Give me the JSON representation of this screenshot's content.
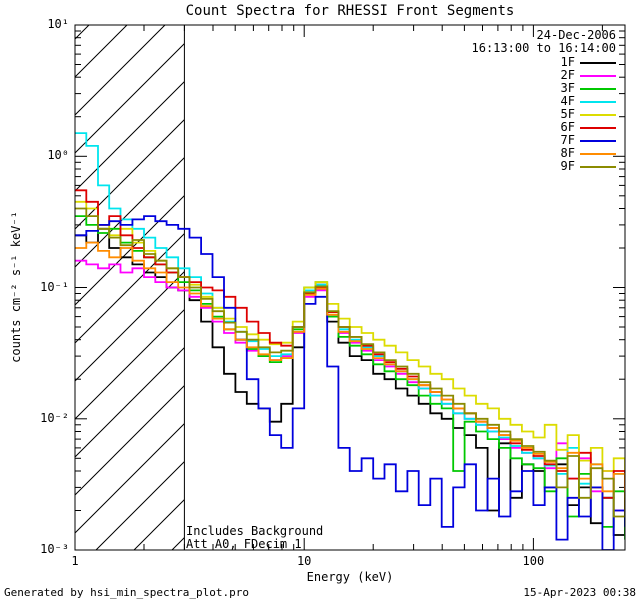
{
  "page": {
    "background": "#ffffff"
  },
  "footer": {
    "left": "Generated by hsi_min_spectra_plot.pro",
    "right": "15-Apr-2023 00:38"
  },
  "chart_data": {
    "type": "line",
    "subtype": "step-log-log-spectra",
    "title": "Count Spectra for RHESSI Front Segments",
    "xlabel": "Energy (keV)",
    "ylabel": "counts cm⁻² s⁻¹ keV⁻¹",
    "date_label": "24-Dec-2006",
    "time_label": "16:13:00 to 16:14:00",
    "annotations": [
      "Includes Background",
      "Att A0, FDecim 1"
    ],
    "x_scale": "log",
    "y_scale": "log",
    "xlim": [
      1,
      251
    ],
    "ylim": [
      0.001,
      10
    ],
    "x_ticks": [
      1,
      10,
      100
    ],
    "x_tick_labels": [
      "1",
      "10",
      "100"
    ],
    "y_ticks": [
      0.001,
      0.01,
      0.1,
      1,
      10
    ],
    "y_tick_labels": [
      "10⁻³",
      "10⁻²",
      "10⁻¹",
      "10⁰",
      "10¹"
    ],
    "grid": false,
    "legend_position": "top-right",
    "hatch_region": {
      "x_start": 1,
      "x_end": 3,
      "style": "diagonal-hatch"
    },
    "energies": [
      1.0,
      1.12,
      1.26,
      1.41,
      1.58,
      1.78,
      2.0,
      2.24,
      2.51,
      2.82,
      3.16,
      3.55,
      3.98,
      4.47,
      5.01,
      5.62,
      6.31,
      7.08,
      7.94,
      8.91,
      10.0,
      11.2,
      12.6,
      14.1,
      15.8,
      17.8,
      20.0,
      22.4,
      25.1,
      28.2,
      31.6,
      35.5,
      39.8,
      44.7,
      50.1,
      56.2,
      63.1,
      70.8,
      79.4,
      89.1,
      100,
      112,
      126,
      141,
      158,
      178,
      200,
      224,
      251
    ],
    "series": [
      {
        "name": "1F",
        "color": "#000000",
        "values": [
          0.25,
          0.22,
          0.28,
          0.2,
          0.17,
          0.15,
          0.13,
          0.12,
          0.1,
          0.095,
          0.08,
          0.055,
          0.035,
          0.022,
          0.016,
          0.013,
          0.012,
          0.0095,
          0.013,
          0.035,
          0.09,
          0.105,
          0.055,
          0.038,
          0.03,
          0.028,
          0.022,
          0.02,
          0.017,
          0.015,
          0.013,
          0.011,
          0.01,
          0.0085,
          0.0075,
          0.006,
          0.002,
          0.0065,
          0.0025,
          0.0045,
          0.004,
          0.003,
          0.0045,
          0.0022,
          0.003,
          0.0016,
          0.0025,
          0.0013,
          0.0018
        ]
      },
      {
        "name": "2F",
        "color": "#ff00ff",
        "values": [
          0.16,
          0.15,
          0.14,
          0.15,
          0.13,
          0.14,
          0.12,
          0.11,
          0.1,
          0.095,
          0.085,
          0.07,
          0.055,
          0.045,
          0.038,
          0.033,
          0.03,
          0.028,
          0.03,
          0.045,
          0.085,
          0.095,
          0.06,
          0.045,
          0.038,
          0.033,
          0.028,
          0.025,
          0.022,
          0.019,
          0.017,
          0.015,
          0.013,
          0.011,
          0.01,
          0.009,
          0.008,
          0.007,
          0.006,
          0.0055,
          0.005,
          0.0042,
          0.0065,
          0.0035,
          0.005,
          0.0028,
          0.004,
          0.002,
          0.0032
        ]
      },
      {
        "name": "3F",
        "color": "#00c800",
        "values": [
          0.35,
          0.3,
          0.26,
          0.28,
          0.22,
          0.19,
          0.17,
          0.15,
          0.13,
          0.11,
          0.095,
          0.075,
          0.06,
          0.048,
          0.04,
          0.034,
          0.03,
          0.027,
          0.029,
          0.048,
          0.1,
          0.11,
          0.06,
          0.042,
          0.036,
          0.031,
          0.026,
          0.023,
          0.02,
          0.018,
          0.015,
          0.013,
          0.012,
          0.004,
          0.0095,
          0.008,
          0.007,
          0.006,
          0.005,
          0.0045,
          0.0042,
          0.0028,
          0.005,
          0.0018,
          0.0038,
          0.003,
          0.0015,
          0.0028,
          0.0012
        ]
      },
      {
        "name": "4F",
        "color": "#00e5ee",
        "values": [
          1.5,
          1.2,
          0.6,
          0.4,
          0.33,
          0.28,
          0.24,
          0.2,
          0.17,
          0.14,
          0.12,
          0.09,
          0.07,
          0.055,
          0.046,
          0.039,
          0.034,
          0.03,
          0.031,
          0.05,
          0.095,
          0.105,
          0.065,
          0.048,
          0.04,
          0.035,
          0.03,
          0.026,
          0.023,
          0.02,
          0.017,
          0.015,
          0.013,
          0.011,
          0.01,
          0.009,
          0.008,
          0.0072,
          0.0062,
          0.0055,
          0.005,
          0.0044,
          0.0038,
          0.006,
          0.0032,
          0.0045,
          0.0025,
          0.0038,
          0.003
        ]
      },
      {
        "name": "5F",
        "color": "#dcdc00",
        "values": [
          0.45,
          0.4,
          0.3,
          0.25,
          0.28,
          0.22,
          0.19,
          0.16,
          0.14,
          0.12,
          0.105,
          0.085,
          0.07,
          0.058,
          0.05,
          0.044,
          0.04,
          0.037,
          0.038,
          0.055,
          0.1,
          0.11,
          0.075,
          0.058,
          0.05,
          0.045,
          0.04,
          0.036,
          0.032,
          0.028,
          0.025,
          0.022,
          0.02,
          0.017,
          0.015,
          0.013,
          0.012,
          0.01,
          0.009,
          0.008,
          0.0072,
          0.009,
          0.0058,
          0.0075,
          0.0048,
          0.006,
          0.004,
          0.005,
          0.0035
        ]
      },
      {
        "name": "6F",
        "color": "#dd0000",
        "values": [
          0.55,
          0.45,
          0.3,
          0.35,
          0.25,
          0.2,
          0.17,
          0.15,
          0.13,
          0.12,
          0.11,
          0.1,
          0.095,
          0.085,
          0.07,
          0.055,
          0.045,
          0.038,
          0.036,
          0.05,
          0.09,
          0.1,
          0.065,
          0.05,
          0.042,
          0.036,
          0.031,
          0.027,
          0.024,
          0.021,
          0.018,
          0.016,
          0.014,
          0.012,
          0.011,
          0.0095,
          0.0085,
          0.0075,
          0.0065,
          0.0058,
          0.0052,
          0.0045,
          0.004,
          0.0035,
          0.0055,
          0.003,
          0.0025,
          0.004,
          0.002
        ]
      },
      {
        "name": "7F",
        "color": "#0000dd",
        "values": [
          0.25,
          0.27,
          0.3,
          0.32,
          0.3,
          0.33,
          0.35,
          0.32,
          0.3,
          0.28,
          0.24,
          0.18,
          0.12,
          0.07,
          0.04,
          0.02,
          0.012,
          0.0075,
          0.006,
          0.012,
          0.075,
          0.085,
          0.025,
          0.006,
          0.004,
          0.005,
          0.0035,
          0.0045,
          0.0028,
          0.004,
          0.0022,
          0.0035,
          0.0015,
          0.003,
          0.0045,
          0.002,
          0.0035,
          0.0018,
          0.0028,
          0.004,
          0.0022,
          0.003,
          0.0012,
          0.0025,
          0.0018,
          0.003,
          0.001,
          0.002,
          0.0015
        ]
      },
      {
        "name": "8F",
        "color": "#ff8c00",
        "values": [
          0.2,
          0.22,
          0.19,
          0.17,
          0.2,
          0.16,
          0.14,
          0.13,
          0.11,
          0.1,
          0.09,
          0.072,
          0.058,
          0.048,
          0.04,
          0.035,
          0.031,
          0.028,
          0.029,
          0.046,
          0.088,
          0.098,
          0.062,
          0.046,
          0.039,
          0.034,
          0.029,
          0.026,
          0.023,
          0.02,
          0.018,
          0.016,
          0.014,
          0.012,
          0.011,
          0.0095,
          0.0085,
          0.0075,
          0.0068,
          0.006,
          0.0054,
          0.0047,
          0.0042,
          0.0055,
          0.0035,
          0.0045,
          0.0028,
          0.0038,
          0.0025
        ]
      },
      {
        "name": "9F",
        "color": "#8b8b00",
        "values": [
          0.4,
          0.35,
          0.28,
          0.24,
          0.21,
          0.23,
          0.18,
          0.16,
          0.14,
          0.12,
          0.1,
          0.082,
          0.066,
          0.054,
          0.046,
          0.04,
          0.035,
          0.032,
          0.033,
          0.05,
          0.092,
          0.102,
          0.066,
          0.05,
          0.042,
          0.037,
          0.032,
          0.028,
          0.025,
          0.022,
          0.019,
          0.017,
          0.015,
          0.013,
          0.011,
          0.01,
          0.009,
          0.008,
          0.007,
          0.0062,
          0.0056,
          0.0048,
          0.003,
          0.0052,
          0.0025,
          0.0042,
          0.0035,
          0.0018,
          0.0028
        ]
      }
    ]
  }
}
